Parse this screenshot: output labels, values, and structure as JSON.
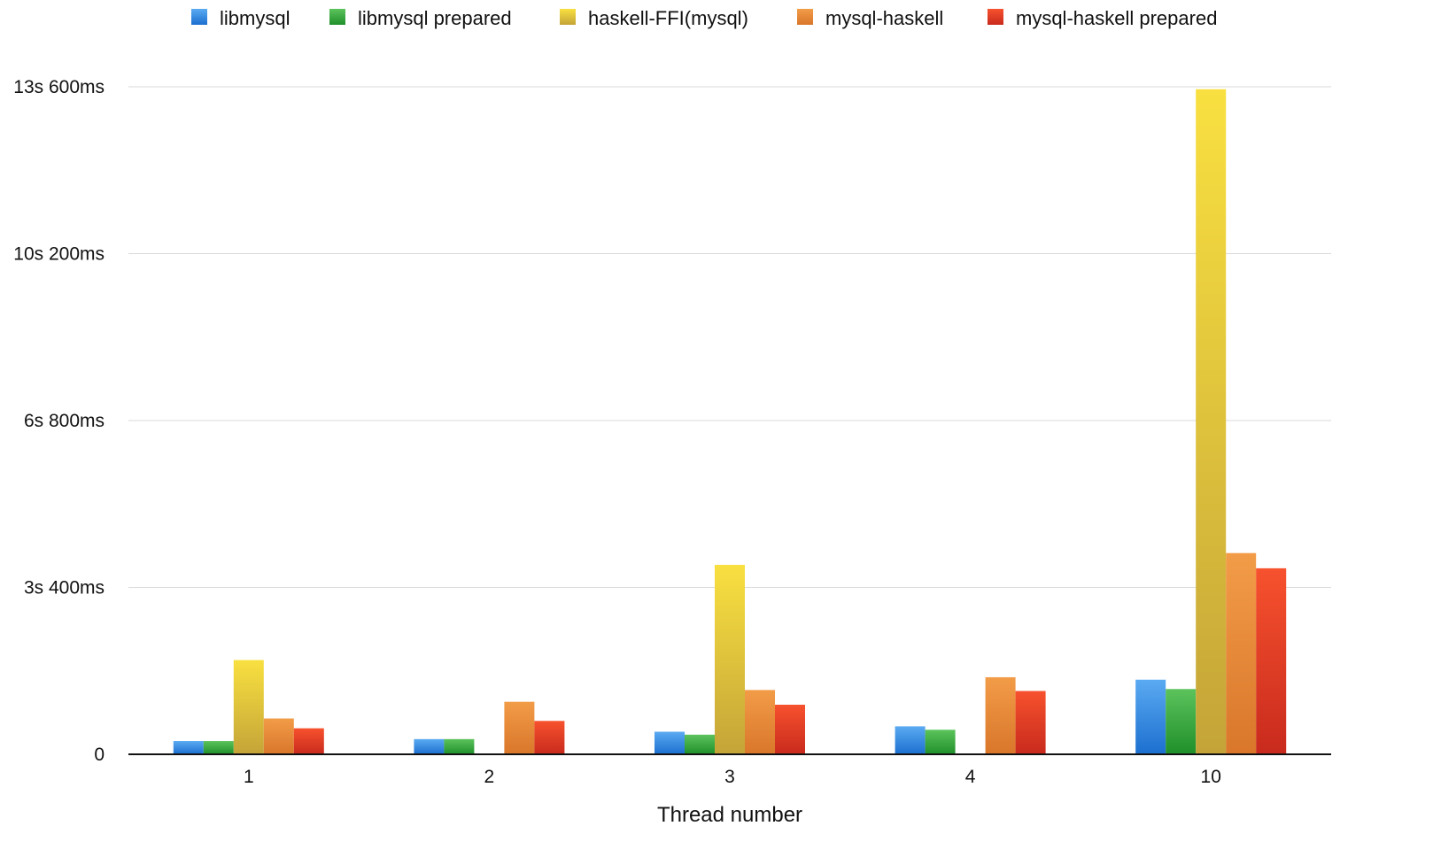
{
  "chart_data": {
    "type": "bar",
    "title": "",
    "xlabel": "Thread number",
    "ylabel": "",
    "categories": [
      "1",
      "2",
      "3",
      "4",
      "10"
    ],
    "ylim": [
      0,
      13600
    ],
    "yticks": [
      {
        "value": 0,
        "label": "0"
      },
      {
        "value": 3400,
        "label": "3s 400ms"
      },
      {
        "value": 6800,
        "label": "6s 800ms"
      },
      {
        "value": 10200,
        "label": "10s 200ms"
      },
      {
        "value": 13600,
        "label": "13s 600ms"
      }
    ],
    "grid": true,
    "legend": "top",
    "series": [
      {
        "name": "libmysql",
        "values": [
          270,
          310,
          460,
          570,
          1520
        ],
        "color_top": "#5aaaf2",
        "color_bottom": "#1c6fcf"
      },
      {
        "name": "libmysql prepared",
        "values": [
          270,
          310,
          400,
          500,
          1330
        ],
        "color_top": "#5cc35c",
        "color_bottom": "#1f8f2a"
      },
      {
        "name": "haskell-FFI(mysql)",
        "values": [
          1920,
          null,
          3860,
          null,
          13550
        ],
        "color_top": "#f9e040",
        "color_bottom": "#c4a438"
      },
      {
        "name": "mysql-haskell",
        "values": [
          730,
          1070,
          1310,
          1570,
          4100
        ],
        "color_top": "#f29c48",
        "color_bottom": "#d9762a"
      },
      {
        "name": "mysql-haskell prepared",
        "values": [
          530,
          680,
          1010,
          1290,
          3790
        ],
        "color_top": "#f7522e",
        "color_bottom": "#c82a1d"
      }
    ]
  }
}
